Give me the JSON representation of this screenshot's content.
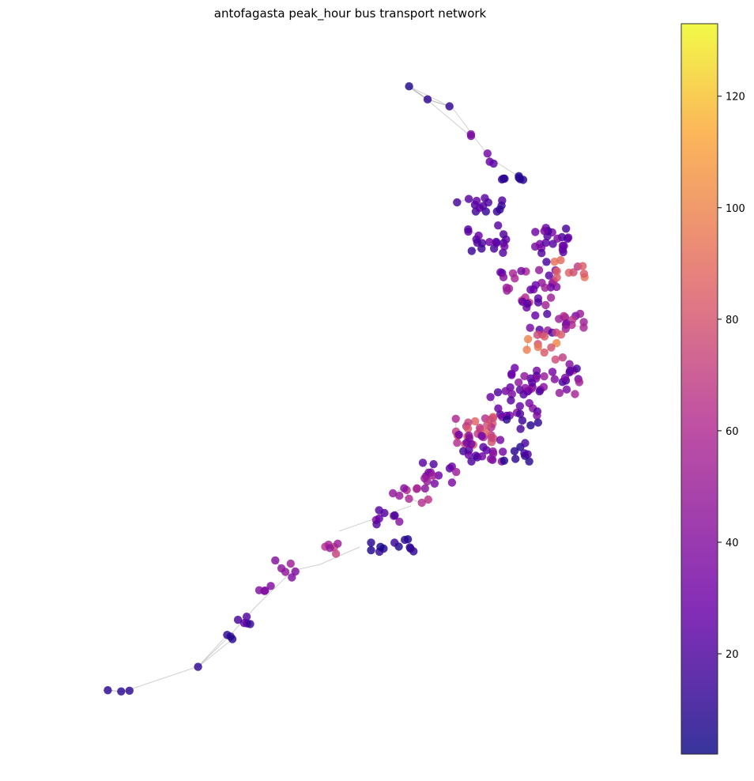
{
  "chart_data": {
    "type": "scatter",
    "subtype": "network-graph",
    "title": "antofagasta peak_hour bus transport network",
    "xlabel": "",
    "ylabel": "",
    "grid": false,
    "colormap": "plasma",
    "colorbar": {
      "placement": "right",
      "range": [
        2,
        133
      ],
      "ticks": [
        20,
        40,
        60,
        80,
        100,
        120
      ],
      "tick_labels": [
        "20",
        "40",
        "60",
        "80",
        "100",
        "120"
      ]
    },
    "node_color_note": "nodes colored by value on colorbar",
    "edge_color": "#bbbbbb"
  },
  "colors": {
    "background": "#ffffff",
    "edge": "#aaaaaa",
    "colorbar_stops": [
      "#0d0887",
      "#6a00a8",
      "#b12a90",
      "#e16462",
      "#fca636",
      "#f0f921"
    ]
  }
}
